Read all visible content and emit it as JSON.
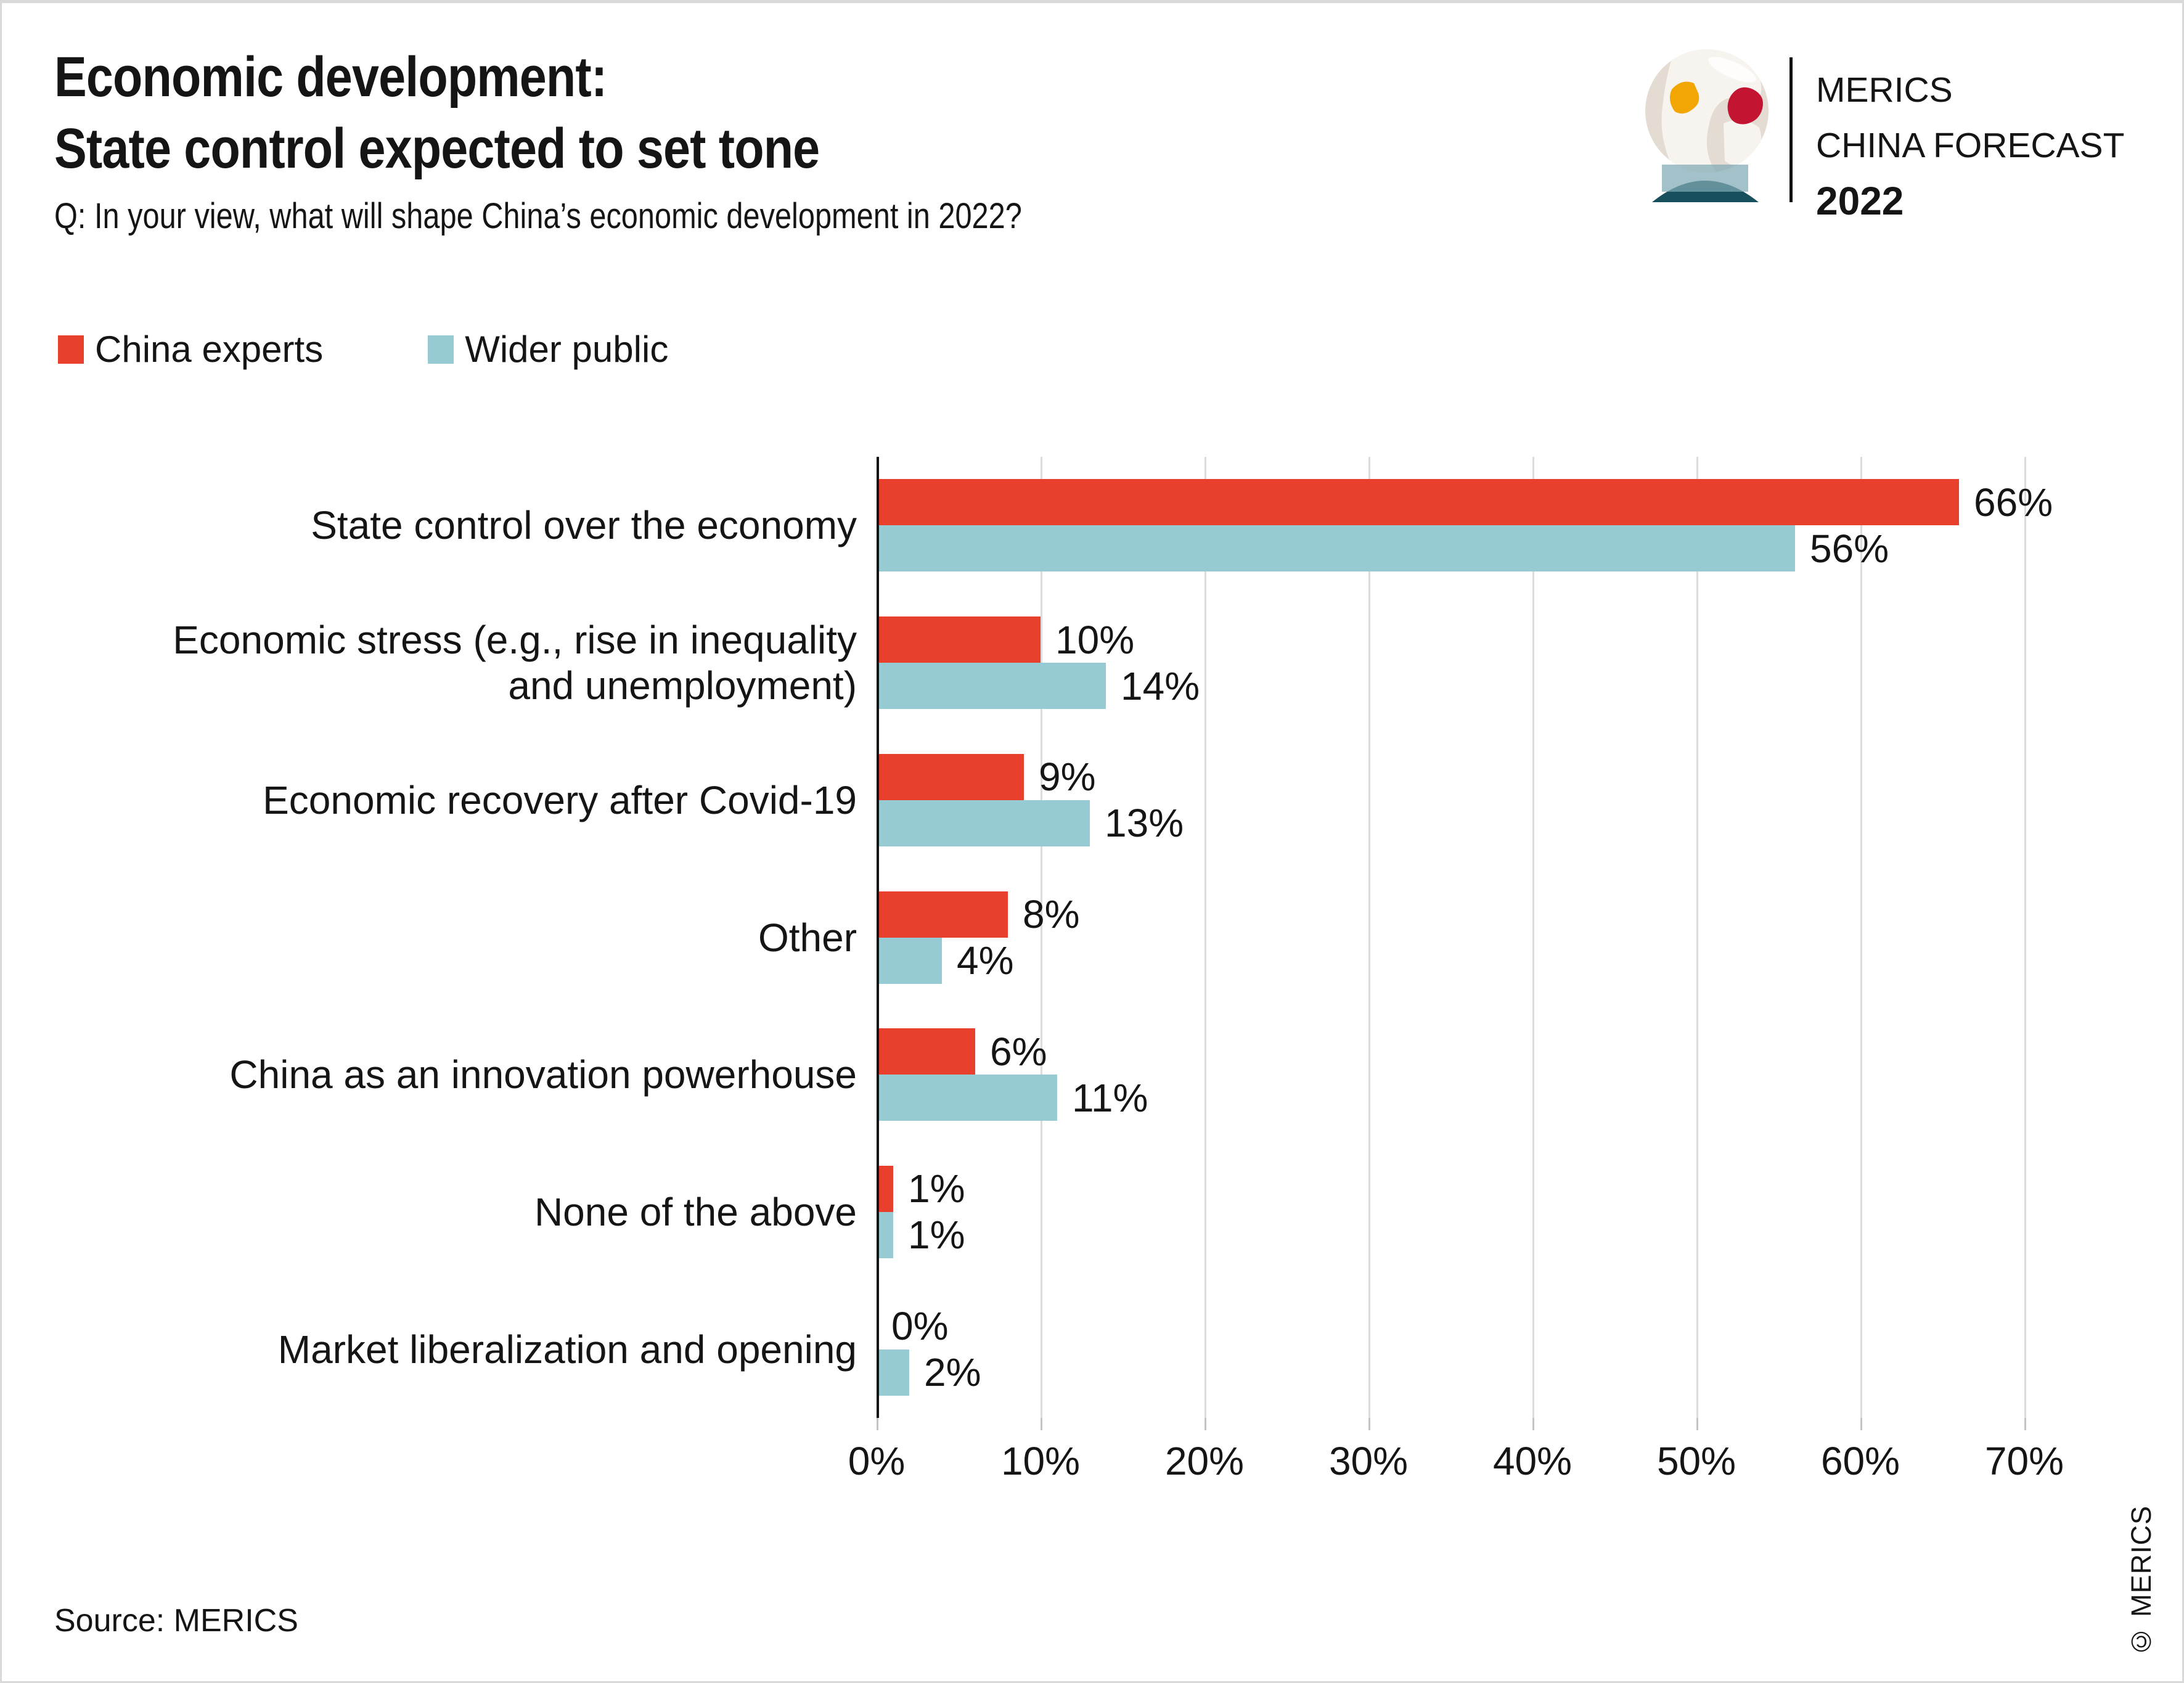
{
  "header": {
    "title_line1": "Economic development:",
    "title_line2": "State control expected to set tone",
    "subtitle": "Q: In your view, what will shape China’s economic development in 2022?"
  },
  "logo": {
    "line1": "MERICS",
    "line2": "CHINA FORECAST",
    "line3": "2022",
    "icon": "crystal-ball-globe-icon",
    "colors": {
      "globe": "#E4DBD3",
      "land": "#F7F3EE",
      "europe": "#F2A603",
      "china": "#C31432",
      "base_dark": "#17505C",
      "base_band": "#7FA9B4"
    }
  },
  "legend": [
    {
      "label": "China experts",
      "color": "#E8402C"
    },
    {
      "label": "Wider public",
      "color": "#96CBD3"
    }
  ],
  "chart_data": {
    "type": "bar",
    "orientation": "horizontal",
    "title": "Economic development: State control expected to set tone",
    "question": "Q: In your view, what will shape China’s economic development in 2022?",
    "categories": [
      [
        "State control over the economy"
      ],
      [
        "Economic stress (e.g., rise in inequality",
        "and unemployment)"
      ],
      [
        "Economic recovery after Covid-19"
      ],
      [
        "Other"
      ],
      [
        "China as an innovation powerhouse"
      ],
      [
        "None of the above"
      ],
      [
        "Market liberalization and opening"
      ]
    ],
    "series": [
      {
        "name": "China experts",
        "color": "#E8402C",
        "values": [
          66,
          10,
          9,
          8,
          6,
          1,
          0
        ],
        "labels": [
          "66%",
          "10%",
          "9%",
          "8%",
          "6%",
          "1%",
          "0%"
        ]
      },
      {
        "name": "Wider public",
        "color": "#96CBD3",
        "values": [
          56,
          14,
          13,
          4,
          11,
          1,
          2
        ],
        "labels": [
          "56%",
          "14%",
          "13%",
          "4%",
          "11%",
          "1%",
          "2%"
        ]
      }
    ],
    "value_suffix": "%",
    "x_ticks": [
      "0%",
      "10%",
      "20%",
      "30%",
      "40%",
      "50%",
      "60%",
      "70%"
    ],
    "xlim": [
      0,
      72
    ],
    "grid": true,
    "grid_color": "#DCDCDC",
    "axis_color": "#111111",
    "legend_position": "top-left"
  },
  "footer": {
    "source": "Source: MERICS",
    "copyright": "© MERICS"
  }
}
